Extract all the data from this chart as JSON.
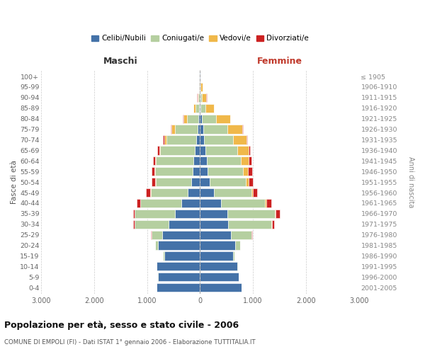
{
  "age_groups": [
    "0-4",
    "5-9",
    "10-14",
    "15-19",
    "20-24",
    "25-29",
    "30-34",
    "35-39",
    "40-44",
    "45-49",
    "50-54",
    "55-59",
    "60-64",
    "65-69",
    "70-74",
    "75-79",
    "80-84",
    "85-89",
    "90-94",
    "95-99",
    "100+"
  ],
  "birth_years": [
    "2001-2005",
    "1996-2000",
    "1991-1995",
    "1986-1990",
    "1981-1985",
    "1976-1980",
    "1971-1975",
    "1966-1970",
    "1961-1965",
    "1956-1960",
    "1951-1955",
    "1946-1950",
    "1941-1945",
    "1936-1940",
    "1931-1935",
    "1926-1930",
    "1921-1925",
    "1916-1920",
    "1911-1915",
    "1906-1910",
    "≤ 1905"
  ],
  "maschi": {
    "celibi": [
      820,
      800,
      820,
      680,
      790,
      720,
      600,
      480,
      350,
      240,
      160,
      140,
      130,
      100,
      70,
      50,
      30,
      15,
      8,
      3,
      2
    ],
    "coniugati": [
      2,
      3,
      5,
      15,
      55,
      200,
      640,
      750,
      780,
      690,
      680,
      710,
      700,
      650,
      560,
      430,
      220,
      65,
      22,
      5,
      2
    ],
    "vedovi": [
      0,
      0,
      0,
      0,
      1,
      2,
      2,
      3,
      5,
      8,
      10,
      15,
      20,
      25,
      45,
      60,
      65,
      45,
      22,
      6,
      2
    ],
    "divorziati": [
      0,
      0,
      0,
      2,
      5,
      10,
      20,
      35,
      60,
      80,
      60,
      50,
      45,
      30,
      20,
      10,
      8,
      5,
      2,
      0,
      0
    ]
  },
  "femmine": {
    "nubili": [
      780,
      730,
      700,
      620,
      660,
      580,
      530,
      510,
      390,
      260,
      180,
      145,
      130,
      105,
      80,
      60,
      35,
      12,
      7,
      3,
      2
    ],
    "coniugate": [
      2,
      4,
      10,
      28,
      95,
      390,
      820,
      900,
      840,
      710,
      680,
      660,
      640,
      600,
      540,
      460,
      270,
      90,
      32,
      8,
      2
    ],
    "vedove": [
      0,
      0,
      0,
      2,
      3,
      5,
      8,
      10,
      15,
      30,
      60,
      100,
      150,
      210,
      255,
      280,
      260,
      155,
      80,
      30,
      5
    ],
    "divorziate": [
      0,
      0,
      0,
      2,
      5,
      15,
      40,
      80,
      100,
      80,
      80,
      80,
      50,
      25,
      15,
      10,
      8,
      5,
      3,
      0,
      0
    ]
  },
  "colors": {
    "celibi": "#4472a8",
    "coniugati": "#b5cfa0",
    "vedovi": "#f0b84a",
    "divorziati": "#cc2222"
  },
  "xlim": 3000,
  "xticks": [
    -3000,
    -2000,
    -1000,
    0,
    1000,
    2000,
    3000
  ],
  "title": "Popolazione per età, sesso e stato civile - 2006",
  "subtitle": "COMUNE DI EMPOLI (FI) - Dati ISTAT 1° gennaio 2006 - Elaborazione TUTTITALIA.IT",
  "xlabel_left": "Maschi",
  "xlabel_right": "Femmine",
  "ylabel_left": "Fasce di età",
  "ylabel_right": "Anni di nascita",
  "legend_labels": [
    "Celibi/Nubili",
    "Coniugati/e",
    "Vedovi/e",
    "Divorziati/e"
  ]
}
